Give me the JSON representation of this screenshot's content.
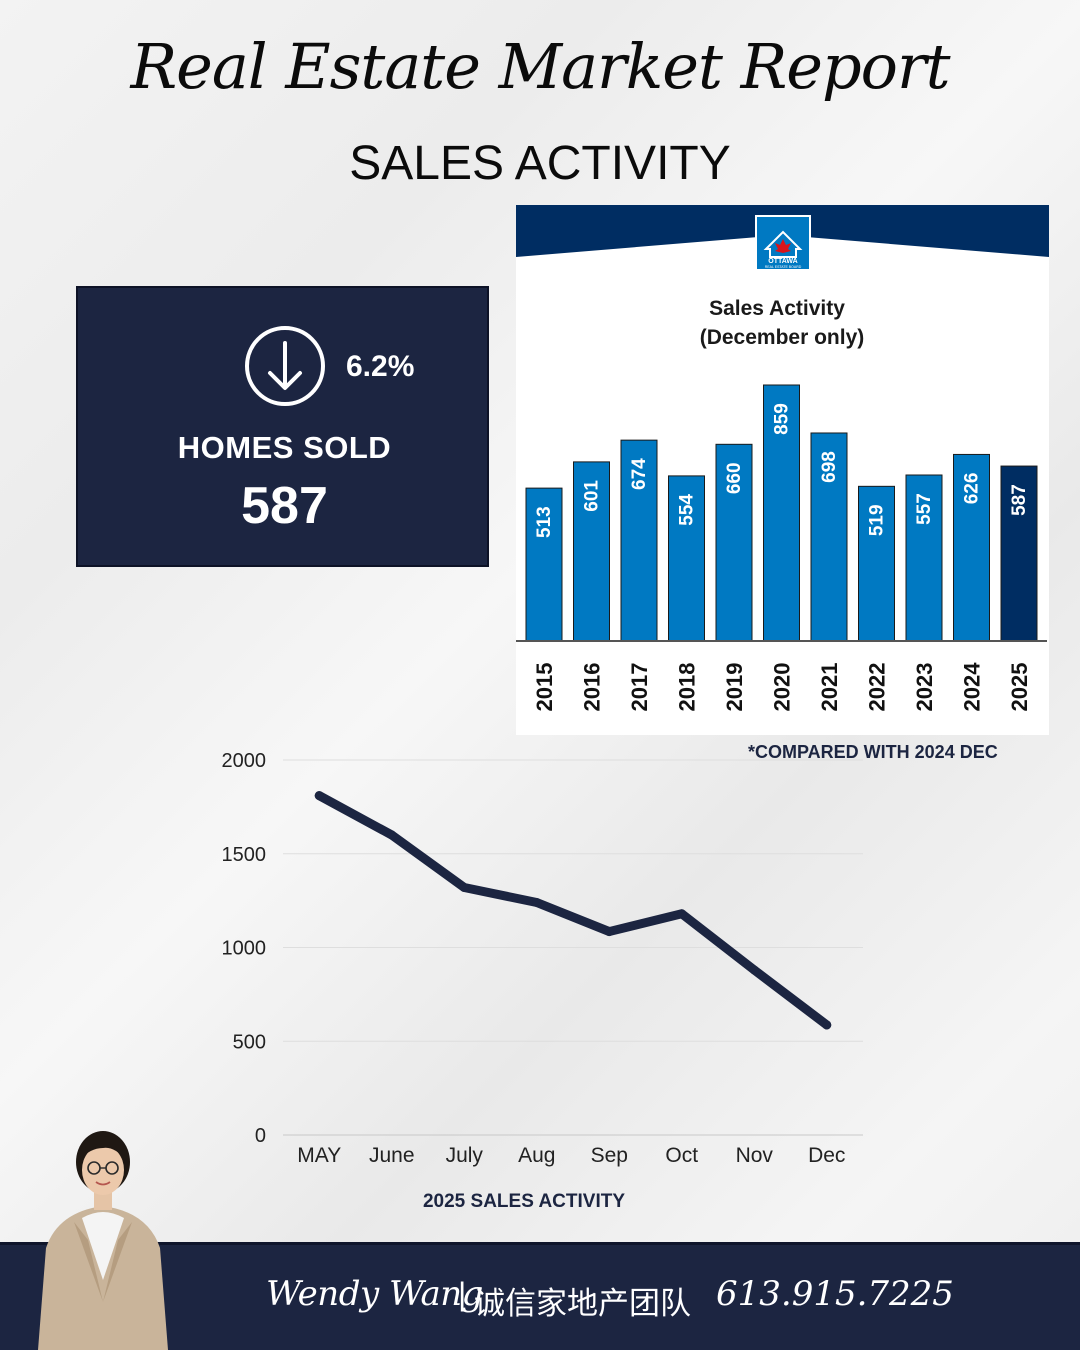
{
  "header": {
    "title": "Real Estate Market Report",
    "subtitle": "SALES ACTIVITY"
  },
  "stat_card": {
    "icon": "arrow-down-circle-icon",
    "change": "6.2%",
    "label": "HOMES SOLD",
    "value": "587"
  },
  "board_logo": {
    "icon": "house-maple-leaf-icon",
    "text_main": "OTTAWA",
    "text_sub": "REAL ESTATE BOARD"
  },
  "note": "*COMPARED WITH 2024 DEC",
  "footer": {
    "name": "Wendy Wang",
    "separator": "|",
    "team": "诚信家地产团队",
    "phone": "613.915.7225"
  },
  "colors": {
    "navy": "#1c2541",
    "board_navy": "#002d62",
    "bar_blue": "#0079c2",
    "bar_highlight": "#002d62"
  },
  "chart_data": [
    {
      "type": "bar",
      "title": "Sales Activity",
      "subtitle": "(December only)",
      "categories": [
        "2015",
        "2016",
        "2017",
        "2018",
        "2019",
        "2020",
        "2021",
        "2022",
        "2023",
        "2024",
        "2025"
      ],
      "values": [
        513,
        601,
        674,
        554,
        660,
        859,
        698,
        519,
        557,
        626,
        587
      ],
      "data_labels": [
        "513",
        "601",
        "674",
        "554",
        "660",
        "859",
        "698",
        "519",
        "557",
        "626",
        "587"
      ],
      "highlight": "2025",
      "grid": false
    },
    {
      "type": "line",
      "title": "2025 SALES ACTIVITY",
      "categories": [
        "MAY",
        "June",
        "July",
        "Aug",
        "Sep",
        "Oct",
        "Nov",
        "Dec"
      ],
      "values": [
        1810,
        1600,
        1320,
        1240,
        1085,
        1180,
        880,
        587
      ],
      "ylim": [
        0,
        2000
      ],
      "yticks": [
        "0",
        "500",
        "1000",
        "1500",
        "2000"
      ],
      "grid": true,
      "legend": "none"
    }
  ]
}
